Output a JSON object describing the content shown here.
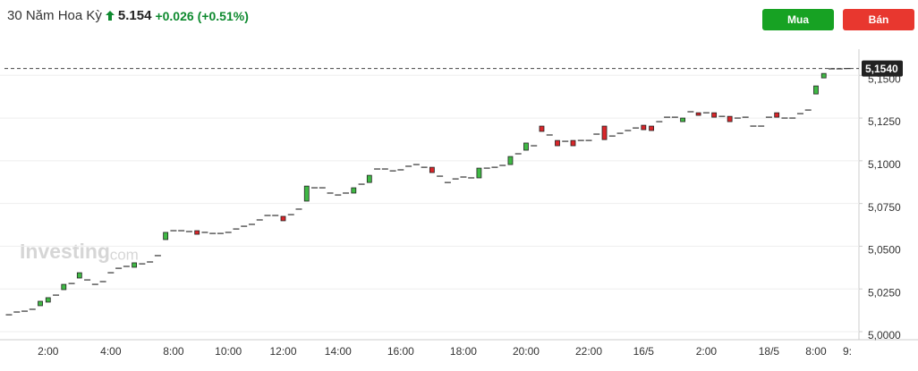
{
  "chart_data": {
    "type": "candlestick",
    "title": "30 Năm Hoa Kỳ",
    "price": "5.154",
    "change": "+0.026",
    "change_percent": "(+0.51%)",
    "watermark": "Investing",
    "watermark_suffix": ".com",
    "last_price": {
      "value": 5.154,
      "label": "5,1540"
    },
    "up_color": "#3fb944",
    "down_color": "#d9262a",
    "flat_color": "#333333",
    "ylim": [
      4.9953,
      5.1627
    ],
    "yticks": [
      {
        "value": 5.0,
        "label": "5,0000"
      },
      {
        "value": 5.025,
        "label": "5,0250"
      },
      {
        "value": 5.05,
        "label": "5,0500"
      },
      {
        "value": 5.075,
        "label": "5,0750"
      },
      {
        "value": 5.1,
        "label": "5,1000"
      },
      {
        "value": 5.125,
        "label": "5,1250"
      },
      {
        "value": 5.15,
        "label": "5,1500"
      }
    ],
    "grid": true,
    "categories": [
      null,
      null,
      null,
      null,
      null,
      "2:00",
      null,
      null,
      null,
      null,
      null,
      null,
      null,
      "4:00",
      null,
      null,
      null,
      null,
      null,
      null,
      null,
      "8:00",
      null,
      null,
      null,
      null,
      null,
      null,
      "10:00",
      null,
      null,
      null,
      null,
      null,
      null,
      "12:00",
      null,
      null,
      null,
      null,
      null,
      null,
      "14:00",
      null,
      null,
      null,
      null,
      null,
      null,
      null,
      "16:00",
      null,
      null,
      null,
      null,
      null,
      null,
      null,
      "18:00",
      null,
      null,
      null,
      null,
      null,
      null,
      null,
      "20:00",
      null,
      null,
      null,
      null,
      null,
      null,
      null,
      "22:00",
      null,
      null,
      null,
      null,
      null,
      null,
      "16/5",
      null,
      null,
      null,
      null,
      null,
      null,
      null,
      "2:00",
      null,
      null,
      null,
      null,
      null,
      null,
      null,
      "18/5",
      null,
      null,
      null,
      null,
      null,
      "8:00",
      null,
      null,
      null,
      "9:"
    ],
    "open": [
      5.0099,
      5.0115,
      5.012,
      5.0131,
      5.0152,
      5.0173,
      5.0214,
      5.0246,
      5.0282,
      5.0314,
      5.0303,
      5.0277,
      5.0293,
      5.0345,
      5.0371,
      5.0382,
      5.0377,
      5.0397,
      5.0408,
      5.0445,
      5.0539,
      5.0591,
      5.0591,
      5.0586,
      5.0591,
      5.0581,
      5.0575,
      5.0575,
      5.0581,
      5.0601,
      5.0617,
      5.0628,
      5.0654,
      5.068,
      5.068,
      5.0675,
      5.0685,
      5.0717,
      5.0764,
      5.0842,
      5.0842,
      5.0811,
      5.08,
      5.0811,
      5.0811,
      5.0863,
      5.0873,
      5.0952,
      5.0952,
      5.0941,
      5.0947,
      5.0968,
      5.0978,
      5.0962,
      5.0962,
      5.091,
      5.0873,
      5.0894,
      5.0905,
      5.09,
      5.09,
      5.0957,
      5.0962,
      5.0973,
      5.0978,
      5.1041,
      5.1062,
      5.1088,
      5.1203,
      5.1151,
      5.1119,
      5.1114,
      5.1119,
      5.1119,
      5.1119,
      5.1156,
      5.1203,
      5.1145,
      5.1161,
      5.1177,
      5.1192,
      5.1208,
      5.1203,
      5.1229,
      5.1255,
      5.1255,
      5.1229,
      5.1287,
      5.1281,
      5.1281,
      5.1281,
      5.126,
      5.126,
      5.125,
      5.1255,
      5.1203,
      5.1203,
      5.1255,
      5.1281,
      5.125,
      5.125,
      5.1276,
      5.1297,
      5.1391,
      5.1485,
      5.1538,
      5.1538,
      5.154
    ],
    "close": [
      5.0099,
      5.0115,
      5.012,
      5.0131,
      5.0178,
      5.0199,
      5.0214,
      5.0277,
      5.0282,
      5.0345,
      5.0303,
      5.0277,
      5.0293,
      5.0345,
      5.0371,
      5.0382,
      5.0403,
      5.0397,
      5.0408,
      5.0445,
      5.0581,
      5.0591,
      5.0591,
      5.0586,
      5.057,
      5.0581,
      5.0575,
      5.0575,
      5.0581,
      5.0601,
      5.0617,
      5.0628,
      5.0654,
      5.068,
      5.068,
      5.0649,
      5.0685,
      5.0717,
      5.0852,
      5.0842,
      5.0842,
      5.0811,
      5.08,
      5.0811,
      5.0842,
      5.0863,
      5.0915,
      5.0952,
      5.0952,
      5.0941,
      5.0947,
      5.0968,
      5.0978,
      5.0962,
      5.0931,
      5.091,
      5.0873,
      5.0894,
      5.0905,
      5.09,
      5.0957,
      5.0957,
      5.0962,
      5.0973,
      5.1025,
      5.1041,
      5.1104,
      5.1088,
      5.1172,
      5.1151,
      5.1088,
      5.1114,
      5.1088,
      5.1119,
      5.1119,
      5.1156,
      5.1124,
      5.1145,
      5.1161,
      5.1177,
      5.1192,
      5.1182,
      5.1177,
      5.1229,
      5.1255,
      5.1255,
      5.125,
      5.1287,
      5.1266,
      5.1281,
      5.1255,
      5.126,
      5.1229,
      5.125,
      5.1255,
      5.1203,
      5.1203,
      5.1255,
      5.1255,
      5.125,
      5.125,
      5.1276,
      5.1297,
      5.1438,
      5.1511,
      5.1538,
      5.1538,
      5.154
    ]
  },
  "buttons": {
    "buy": "Mua",
    "sell": "Bán"
  }
}
